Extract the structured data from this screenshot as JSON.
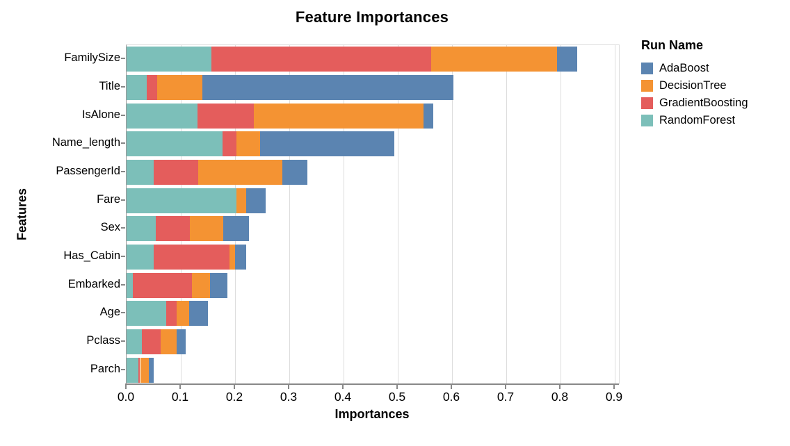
{
  "page": {
    "background": "#ffffff"
  },
  "colors": {
    "grid": "#dddddd",
    "plot_border": "#dddddd",
    "axis": "#888888",
    "text": "#000000"
  },
  "chart_data": {
    "type": "bar",
    "stacked": true,
    "orientation": "horizontal",
    "title": "Feature Importances",
    "xlabel": "Importances",
    "ylabel": "Features",
    "xlim": [
      0.0,
      0.9
    ],
    "xticks": [
      "0.0",
      "0.1",
      "0.2",
      "0.3",
      "0.4",
      "0.5",
      "0.6",
      "0.7",
      "0.8",
      "0.9"
    ],
    "grid": true,
    "categories": [
      "FamilySize",
      "Title",
      "IsAlone",
      "Name_length",
      "PassengerId",
      "Fare",
      "Sex",
      "Has_Cabin",
      "Embarked",
      "Age",
      "Pclass",
      "Parch"
    ],
    "stack_order_left_to_right": [
      "RandomForest",
      "GradientBoosting",
      "DecisionTree",
      "AdaBoost"
    ],
    "series": [
      {
        "name": "AdaBoost",
        "color": "#5b84b1",
        "values": [
          0.038,
          0.463,
          0.018,
          0.247,
          0.046,
          0.035,
          0.048,
          0.02,
          0.032,
          0.035,
          0.017,
          0.009
        ]
      },
      {
        "name": "DecisionTree",
        "color": "#f49333",
        "values": [
          0.231,
          0.083,
          0.313,
          0.044,
          0.155,
          0.018,
          0.061,
          0.01,
          0.034,
          0.023,
          0.029,
          0.016
        ]
      },
      {
        "name": "GradientBoosting",
        "color": "#e45d5c",
        "values": [
          0.405,
          0.02,
          0.103,
          0.025,
          0.082,
          0.0,
          0.063,
          0.14,
          0.108,
          0.019,
          0.035,
          0.003
        ]
      },
      {
        "name": "RandomForest",
        "color": "#7cbfb9",
        "values": [
          0.157,
          0.037,
          0.131,
          0.177,
          0.05,
          0.203,
          0.054,
          0.05,
          0.012,
          0.073,
          0.028,
          0.022
        ]
      }
    ],
    "totals": [
      0.831,
      0.603,
      0.565,
      0.493,
      0.333,
      0.256,
      0.226,
      0.22,
      0.186,
      0.15,
      0.109,
      0.05
    ],
    "legend": {
      "title": "Run Name",
      "position": "right",
      "entries": [
        "AdaBoost",
        "DecisionTree",
        "GradientBoosting",
        "RandomForest"
      ]
    }
  }
}
